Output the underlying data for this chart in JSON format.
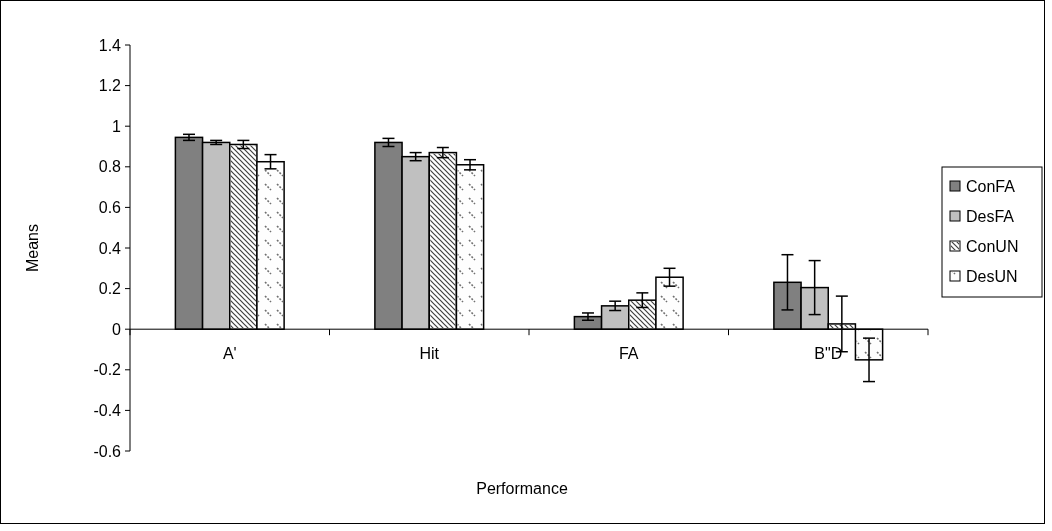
{
  "chart_data": {
    "type": "bar",
    "xlabel": "Performance",
    "ylabel": "Means",
    "categories": [
      "A'",
      "Hit",
      "FA",
      "B\"D"
    ],
    "series": [
      {
        "name": "ConFA",
        "color": "#808080",
        "values": [
          0.945,
          0.92,
          0.062,
          0.231
        ],
        "errors": [
          0.015,
          0.02,
          0.018,
          0.136
        ]
      },
      {
        "name": "DesFA",
        "color": "#c0c0c0",
        "values": [
          0.92,
          0.85,
          0.115,
          0.205
        ],
        "errors": [
          0.01,
          0.02,
          0.023,
          0.133
        ]
      },
      {
        "name": "ConUN",
        "color": "#ffffff",
        "values": [
          0.91,
          0.87,
          0.143,
          0.026
        ],
        "errors": [
          0.02,
          0.025,
          0.036,
          0.137
        ]
      },
      {
        "name": "DesUN",
        "color": "#fefefe",
        "values": [
          0.825,
          0.81,
          0.256,
          -0.151
        ],
        "errors": [
          0.035,
          0.025,
          0.044,
          0.107
        ]
      }
    ],
    "ylim": [
      -0.6,
      1.4
    ],
    "yticks": [
      -0.6,
      -0.4,
      -0.2,
      0,
      0.2,
      0.4,
      0.6,
      0.8,
      1,
      1.2,
      1.4
    ],
    "grid": false,
    "legend": "right"
  }
}
